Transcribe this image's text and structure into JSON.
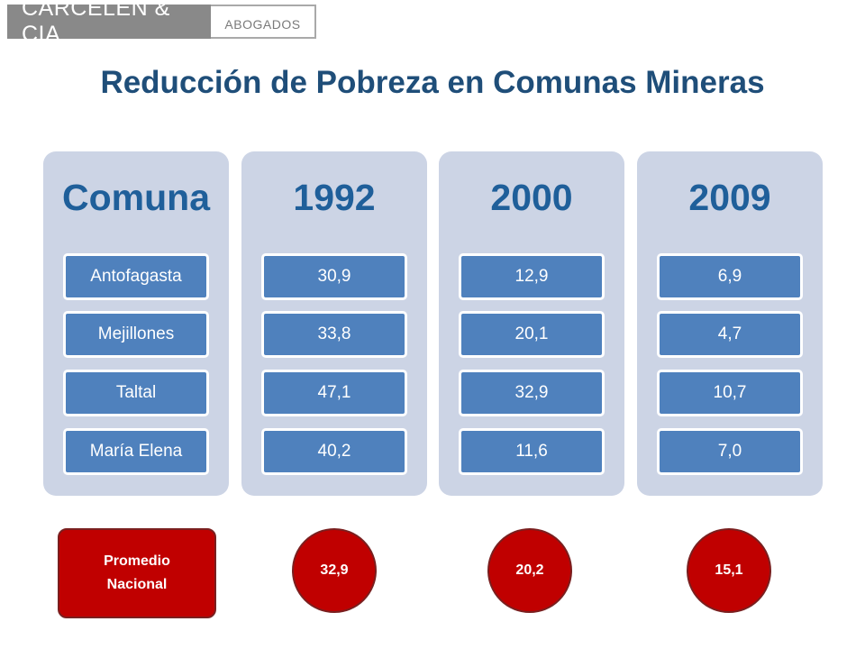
{
  "logo": {
    "name": "CARCELEN & CIA.",
    "suffix": "ABOGADOS"
  },
  "title": "Reducción de Pobreza en Comunas Mineras",
  "columns": [
    {
      "header": "Comuna",
      "cells": [
        "Antofagasta",
        "Mejillones",
        "Taltal",
        "María Elena"
      ]
    },
    {
      "header": "1992",
      "cells": [
        "30,9",
        "33,8",
        "47,1",
        "40,2"
      ]
    },
    {
      "header": "2000",
      "cells": [
        "12,9",
        "20,1",
        "32,9",
        "11,6"
      ]
    },
    {
      "header": "2009",
      "cells": [
        "6,9",
        "4,7",
        "10,7",
        "7,0"
      ]
    }
  ],
  "national": {
    "label_line1": "Promedio",
    "label_line2": "Nacional",
    "values": [
      "32,9",
      "20,2",
      "15,1"
    ]
  },
  "colors": {
    "title": "#1f4e79",
    "column_bg": "#ccd4e5",
    "cell_bg": "#4f81bd",
    "header_text": "#1f5f9a",
    "national_bg": "#c00000",
    "logo_bg": "#898989"
  }
}
